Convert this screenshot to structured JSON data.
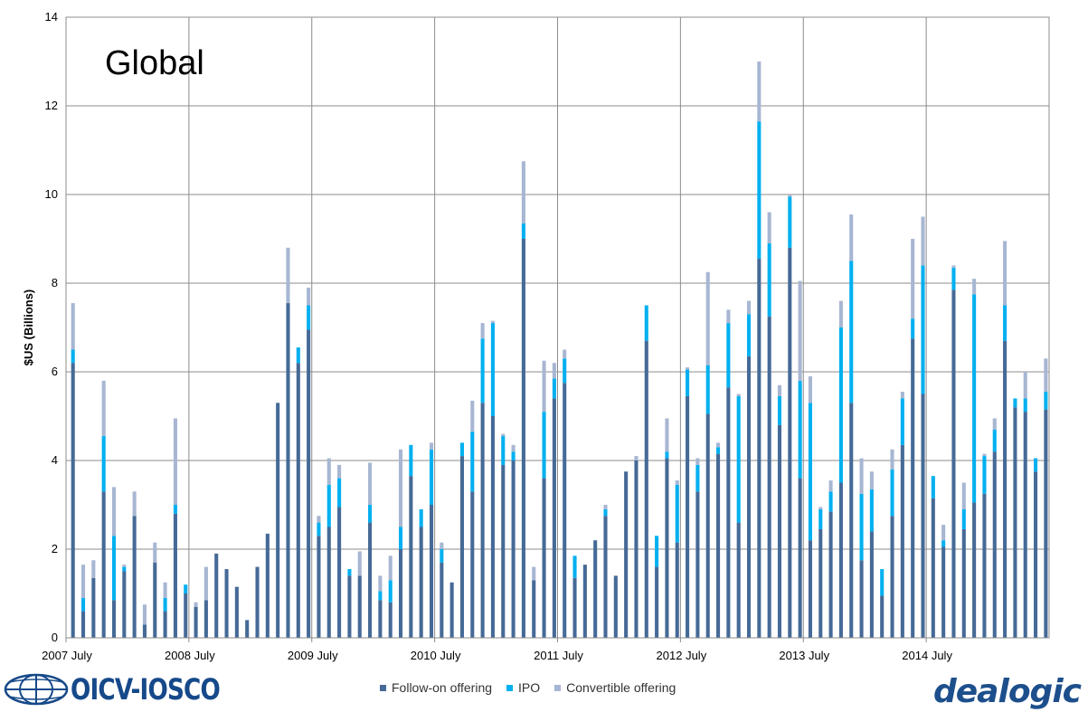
{
  "chart_data": {
    "type": "bar",
    "stacked": true,
    "title": "Global",
    "ylabel": "$US (Billions)",
    "xlabel": "",
    "ylim": [
      0,
      14
    ],
    "yticks": [
      0,
      2,
      4,
      6,
      8,
      10,
      12,
      14
    ],
    "x_tick_labels": [
      "2007 July",
      "2008 July",
      "2009 July",
      "2010 July",
      "2011 July",
      "2012 July",
      "2013 July",
      "2014 July"
    ],
    "grid": true,
    "legend_position": "bottom",
    "colors": {
      "follow_on": "#456a97",
      "ipo": "#00b0f0",
      "convertible": "#a7b6d2"
    },
    "series": [
      {
        "name": "Follow-on offering",
        "values": [
          6.2,
          0.6,
          1.35,
          3.3,
          0.85,
          1.5,
          2.75,
          0.3,
          1.7,
          0.6,
          2.8,
          1.0,
          0.7,
          0.85,
          1.9,
          1.55,
          1.15,
          0.4,
          1.6,
          2.35,
          5.3,
          7.55,
          6.2,
          6.95,
          2.3,
          2.5,
          2.95,
          1.4,
          1.4,
          2.6,
          0.85,
          0.8,
          2.0,
          3.65,
          2.5,
          3.0,
          1.7,
          1.25,
          4.1,
          3.3,
          5.3,
          5.0,
          3.9,
          4.0,
          9.0,
          1.3,
          3.6,
          5.4,
          5.75,
          1.35,
          1.65,
          2.2,
          2.75,
          1.4,
          3.75,
          4.0,
          6.7,
          1.6,
          4.05,
          2.15,
          5.45,
          3.3,
          5.05,
          4.15,
          5.65,
          2.6,
          6.35,
          8.55,
          7.25,
          4.8,
          8.8,
          3.6,
          2.2,
          2.45,
          2.85,
          3.5,
          5.3,
          1.75,
          2.4,
          0.95,
          2.75,
          4.35,
          6.75,
          5.5,
          3.15,
          2.05,
          7.85,
          2.45,
          3.05,
          3.25,
          4.2,
          6.7,
          5.2,
          5.1,
          3.75,
          5.15
        ]
      },
      {
        "name": "IPO",
        "values": [
          0.3,
          0.3,
          0.0,
          1.25,
          1.45,
          0.1,
          0.0,
          0.0,
          0.0,
          0.3,
          0.2,
          0.2,
          0.0,
          0.0,
          0.0,
          0.0,
          0.0,
          0.0,
          0.0,
          0.0,
          0.0,
          0.0,
          0.35,
          0.55,
          0.3,
          0.95,
          0.65,
          0.15,
          0.0,
          0.4,
          0.2,
          0.5,
          0.5,
          0.7,
          0.4,
          1.25,
          0.3,
          0.0,
          0.3,
          1.35,
          1.45,
          2.1,
          0.65,
          0.2,
          0.35,
          0.0,
          1.5,
          0.45,
          0.55,
          0.5,
          0.0,
          0.0,
          0.15,
          0.0,
          0.0,
          0.0,
          0.8,
          0.7,
          0.15,
          1.3,
          0.6,
          0.6,
          1.1,
          0.15,
          1.45,
          2.85,
          0.95,
          3.1,
          1.65,
          0.65,
          1.15,
          2.2,
          3.1,
          0.45,
          0.45,
          3.5,
          3.2,
          1.5,
          0.95,
          0.6,
          1.05,
          1.05,
          0.45,
          2.9,
          0.5,
          0.15,
          0.5,
          0.45,
          4.7,
          0.85,
          0.5,
          0.8,
          0.2,
          0.3,
          0.3,
          0.4
        ]
      },
      {
        "name": "Convertible offering",
        "values": [
          1.05,
          0.75,
          0.4,
          1.25,
          1.1,
          0.05,
          0.55,
          0.45,
          0.45,
          0.35,
          1.95,
          0.0,
          0.1,
          0.75,
          0.0,
          0.0,
          0.0,
          0.0,
          0.0,
          0.0,
          0.0,
          1.25,
          0.0,
          0.4,
          0.15,
          0.6,
          0.3,
          0.0,
          0.55,
          0.95,
          0.35,
          0.55,
          1.75,
          0.0,
          0.0,
          0.15,
          0.15,
          0.0,
          0.0,
          0.7,
          0.35,
          0.05,
          0.05,
          0.15,
          1.4,
          0.3,
          1.15,
          0.35,
          0.2,
          0.0,
          0.0,
          0.0,
          0.1,
          0.0,
          0.0,
          0.1,
          0.0,
          0.0,
          0.75,
          0.1,
          0.05,
          0.15,
          2.1,
          0.1,
          0.3,
          0.05,
          0.3,
          1.35,
          0.7,
          0.25,
          0.05,
          2.25,
          0.6,
          0.05,
          0.25,
          0.6,
          1.05,
          0.8,
          0.4,
          0.0,
          0.45,
          0.15,
          1.8,
          1.1,
          0.0,
          0.35,
          0.05,
          0.6,
          0.35,
          0.05,
          0.25,
          1.45,
          0.0,
          0.6,
          0.0,
          0.75
        ]
      }
    ]
  },
  "legend": {
    "follow_on_label": "Follow-on offering",
    "ipo_label": "IPO",
    "convertible_label": "Convertible offering"
  },
  "logos": {
    "left": "OICV-IOSCO",
    "right": "dealogic"
  }
}
